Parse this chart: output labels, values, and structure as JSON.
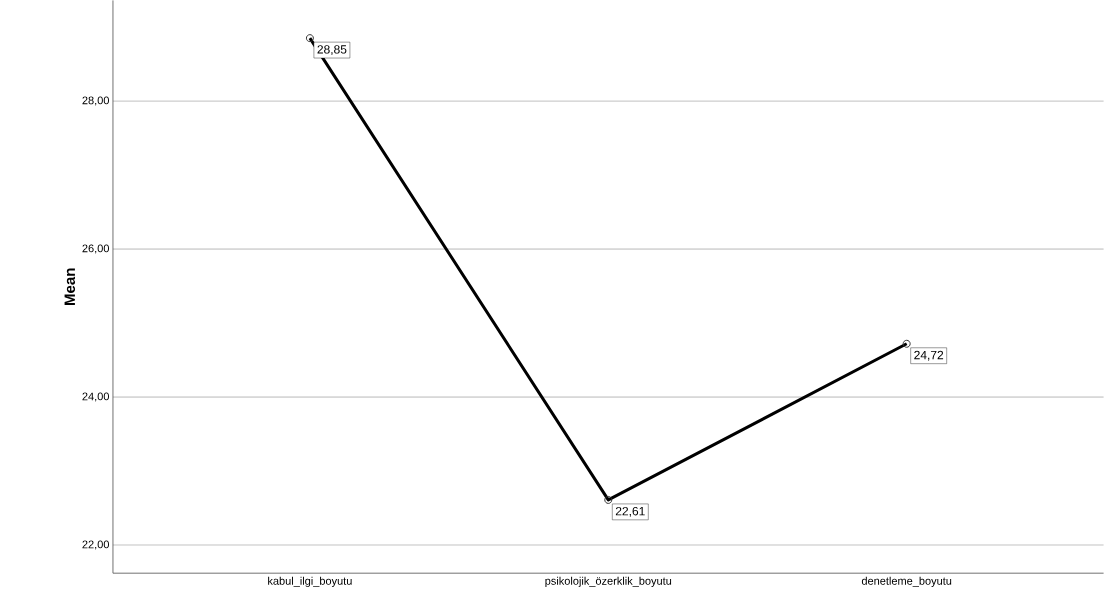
{
  "chart_data": {
    "type": "line",
    "ylabel": "Mean",
    "categories": [
      "kabul_ilgi_boyutu",
      "psikolojik_özerklik_boyutu",
      "denetleme_boyutu"
    ],
    "values": [
      28.85,
      22.61,
      24.72
    ],
    "value_labels": [
      "28,85",
      "22,61",
      "24,72"
    ],
    "color": "#000000",
    "ylim": [
      21.62,
      29.36
    ],
    "yticks": [
      {
        "value": 22,
        "label": "22,00"
      },
      {
        "value": 24,
        "label": "24,00"
      },
      {
        "value": 26,
        "label": "26,00"
      },
      {
        "value": 28,
        "label": "28,00"
      }
    ],
    "grid": "y",
    "marker": "circle",
    "line_style": "solid"
  }
}
